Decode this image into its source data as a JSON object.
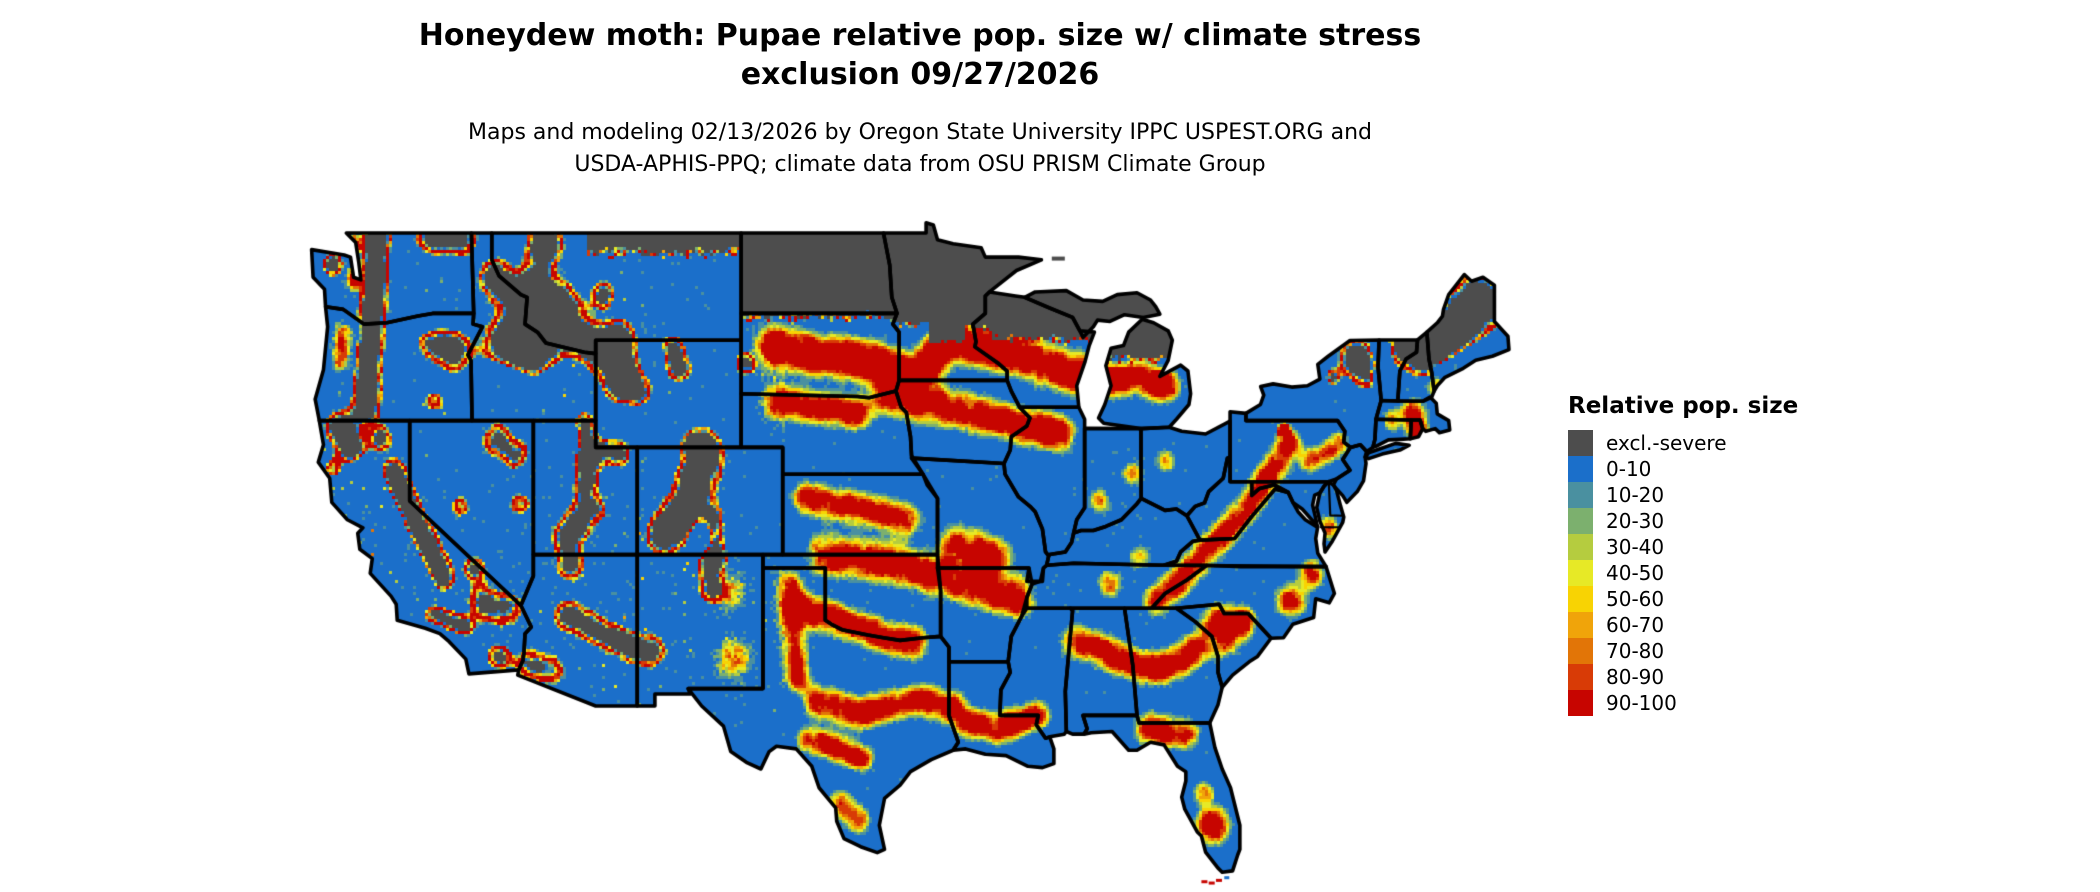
{
  "title": {
    "line1": "Honeydew moth: Pupae relative pop. size w/ climate stress",
    "line2": "exclusion 09/27/2026"
  },
  "subtitle": {
    "line1": "Maps and modeling 02/13/2026 by Oregon State University IPPC USPEST.ORG and",
    "line2": "USDA-APHIS-PPQ; climate data from OSU PRISM Climate Group"
  },
  "legend": {
    "title": "Relative pop. size",
    "items": [
      {
        "label": "excl.-severe",
        "color": "#4d4d4d"
      },
      {
        "label": "0-10",
        "color": "#1b6fca"
      },
      {
        "label": "10-20",
        "color": "#4a90a0"
      },
      {
        "label": "20-30",
        "color": "#7cb06e"
      },
      {
        "label": "30-40",
        "color": "#b5cc3f"
      },
      {
        "label": "40-50",
        "color": "#e7e926"
      },
      {
        "label": "50-60",
        "color": "#f8d303"
      },
      {
        "label": "60-70",
        "color": "#f0a40a"
      },
      {
        "label": "70-80",
        "color": "#e27507"
      },
      {
        "label": "80-90",
        "color": "#d83b06"
      },
      {
        "label": "90-100",
        "color": "#c70500"
      }
    ]
  },
  "map": {
    "region": "Contiguous United States",
    "background_color": "#ffffff",
    "border_color": "#000000"
  }
}
